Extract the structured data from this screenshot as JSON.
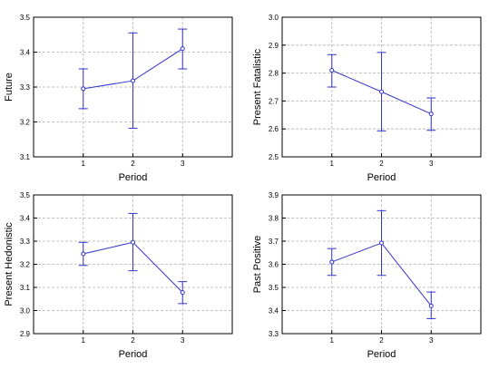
{
  "chart_data": [
    {
      "type": "line",
      "xlabel": "Period",
      "ylabel": "Future",
      "categories": [
        "1",
        "2",
        "3"
      ],
      "ylim": [
        3.1,
        3.5
      ],
      "yticks": [
        "3.1",
        "3.2",
        "3.3",
        "3.4",
        "3.5"
      ],
      "grid": true,
      "series": [
        {
          "values": [
            3.295,
            3.318,
            3.41
          ],
          "error_low": [
            3.238,
            3.182,
            3.352
          ],
          "error_high": [
            3.352,
            3.455,
            3.466
          ]
        }
      ]
    },
    {
      "type": "line",
      "xlabel": "Period",
      "ylabel": "Present Fatalistic",
      "categories": [
        "1",
        "2",
        "3"
      ],
      "ylim": [
        2.5,
        3.0
      ],
      "yticks": [
        "2.5",
        "2.6",
        "2.7",
        "2.8",
        "2.9",
        "3.0"
      ],
      "grid": true,
      "series": [
        {
          "values": [
            2.81,
            2.733,
            2.654
          ],
          "error_low": [
            2.75,
            2.593,
            2.595
          ],
          "error_high": [
            2.866,
            2.874,
            2.711
          ]
        }
      ]
    },
    {
      "type": "line",
      "xlabel": "Period",
      "ylabel": "Present Hedonistic",
      "categories": [
        "1",
        "2",
        "3"
      ],
      "ylim": [
        2.9,
        3.5
      ],
      "yticks": [
        "2.9",
        "3.0",
        "3.1",
        "3.2",
        "3.3",
        "3.4",
        "3.5"
      ],
      "grid": true,
      "series": [
        {
          "values": [
            3.245,
            3.295,
            3.078
          ],
          "error_low": [
            3.195,
            3.172,
            3.03
          ],
          "error_high": [
            3.295,
            3.42,
            3.125
          ]
        }
      ]
    },
    {
      "type": "line",
      "xlabel": "Period",
      "ylabel": "Past Positive",
      "categories": [
        "1",
        "2",
        "3"
      ],
      "ylim": [
        3.3,
        3.9
      ],
      "yticks": [
        "3.3",
        "3.4",
        "3.5",
        "3.6",
        "3.7",
        "3.8",
        "3.9"
      ],
      "grid": true,
      "series": [
        {
          "values": [
            3.61,
            3.692,
            3.42
          ],
          "error_low": [
            3.552,
            3.552,
            3.365
          ],
          "error_high": [
            3.668,
            3.832,
            3.48
          ]
        }
      ]
    }
  ],
  "colors": {
    "series": "#3333cc",
    "grid": "#b4b4b4",
    "axis": "#000000"
  }
}
